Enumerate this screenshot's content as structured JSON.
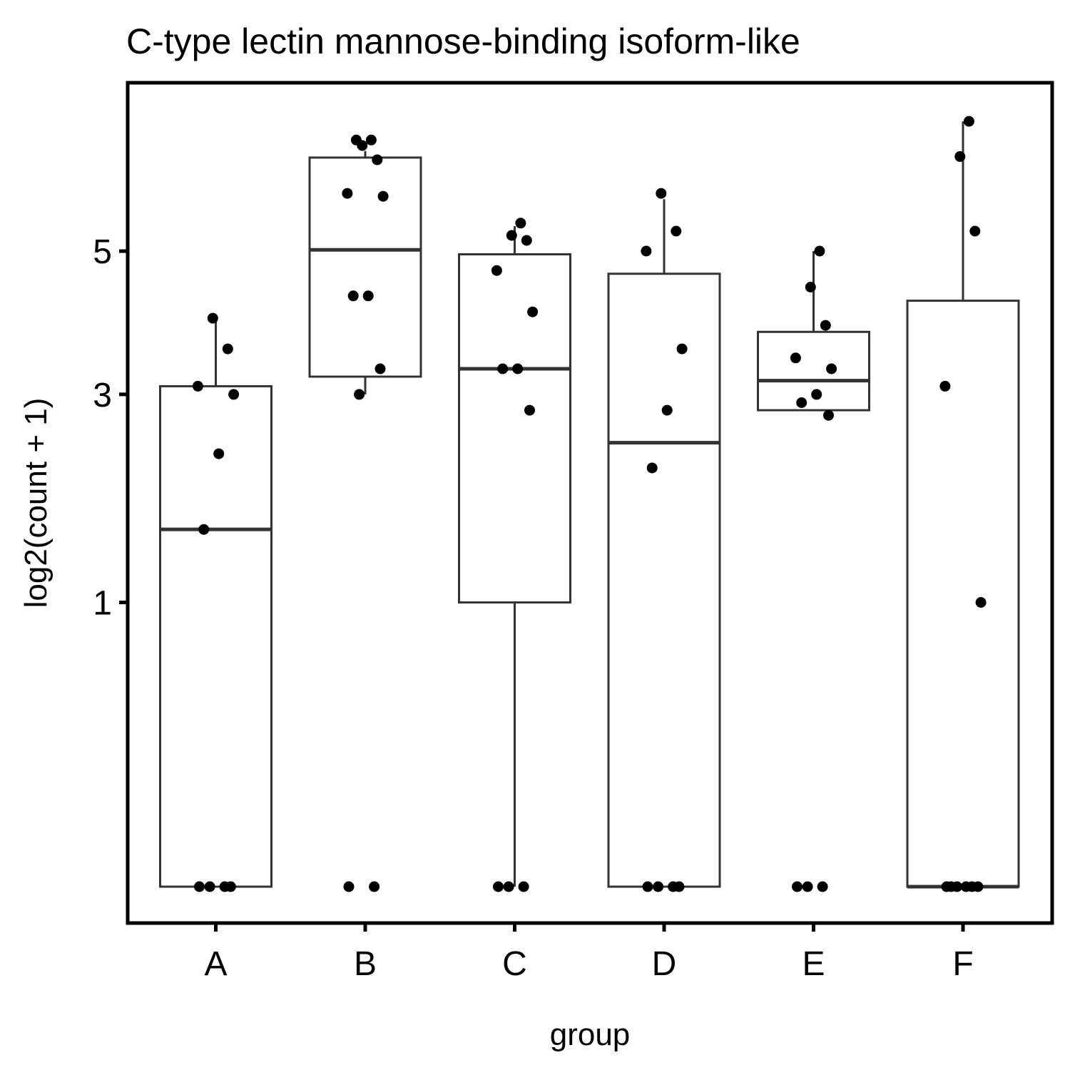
{
  "chart_data": {
    "type": "box",
    "title": "C-type lectin mannose-binding isoform-like",
    "xlabel": "group",
    "ylabel": "log2(count + 1)",
    "y_scale": "sqrt",
    "ylim": [
      0,
      8.0
    ],
    "yticks": [
      1,
      3,
      5
    ],
    "categories": [
      "A",
      "B",
      "C",
      "D",
      "E",
      "F"
    ],
    "box_color": "#333333",
    "point_color": "#000000",
    "boxes": [
      {
        "group": "A",
        "lower_whisker": 0,
        "q1": 0,
        "median": 1.58,
        "q3": 3.1,
        "upper_whisker": 4.0
      },
      {
        "group": "B",
        "lower_whisker": 3.0,
        "q1": 3.22,
        "median": 5.02,
        "q3": 6.58,
        "upper_whisker": 6.7
      },
      {
        "group": "C",
        "lower_whisker": 0,
        "q1": 1.0,
        "median": 3.32,
        "q3": 4.95,
        "upper_whisker": 5.4
      },
      {
        "group": "D",
        "lower_whisker": 0,
        "q1": 0,
        "median": 2.44,
        "q3": 4.65,
        "upper_whisker": 5.85
      },
      {
        "group": "E",
        "lower_whisker": 2.81,
        "q1": 2.81,
        "median": 3.17,
        "q3": 3.81,
        "upper_whisker": 5.0
      },
      {
        "group": "F",
        "lower_whisker": 0,
        "q1": 0,
        "median": 0,
        "q3": 4.25,
        "upper_whisker": 7.25
      }
    ],
    "points": [
      {
        "group": "A",
        "values": [
          0,
          0,
          0,
          0,
          1.58,
          2.32,
          3.0,
          3.1,
          3.58,
          4.0
        ]
      },
      {
        "group": "B",
        "values": [
          0,
          0,
          3.0,
          3.32,
          4.32,
          4.32,
          5.9,
          5.95,
          6.54,
          6.8,
          6.9,
          6.9
        ]
      },
      {
        "group": "C",
        "values": [
          0,
          0,
          0,
          2.81,
          3.32,
          3.32,
          4.09,
          4.7,
          5.17,
          5.25,
          5.45
        ]
      },
      {
        "group": "D",
        "values": [
          0,
          0,
          0,
          0,
          2.17,
          2.81,
          3.58,
          5.0,
          5.32,
          5.95
        ]
      },
      {
        "group": "E",
        "values": [
          0,
          0,
          0,
          2.75,
          2.9,
          3.0,
          3.32,
          3.46,
          3.9,
          4.45,
          5.0
        ]
      },
      {
        "group": "F",
        "values": [
          0,
          0,
          0,
          0,
          0,
          0,
          1.0,
          3.1,
          5.32,
          6.6,
          7.25
        ]
      }
    ]
  }
}
